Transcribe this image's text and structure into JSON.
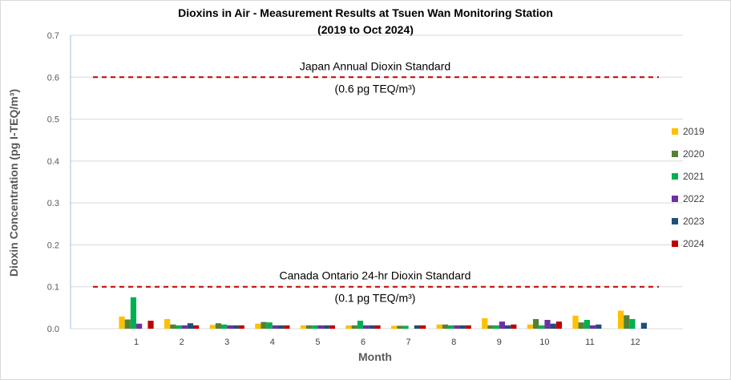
{
  "chart_data": {
    "type": "bar",
    "title": "Dioxins in Air - Measurement Results at Tsuen Wan Monitoring Station",
    "subtitle": "(2019 to Oct 2024)",
    "xlabel": "Month",
    "ylabel": "Dioxin Concentration (pg I-TEQ/m³)",
    "ylim": [
      0,
      0.7
    ],
    "yticks": [
      "0.0",
      "0.1",
      "0.2",
      "0.3",
      "0.4",
      "0.5",
      "0.6",
      "0.7"
    ],
    "grid": true,
    "legend_position": "right",
    "categories": [
      "1",
      "2",
      "3",
      "4",
      "5",
      "6",
      "7",
      "8",
      "9",
      "10",
      "11",
      "12"
    ],
    "series": [
      {
        "name": "2019",
        "color": "#FFC000",
        "values": [
          0.029,
          0.023,
          0.009,
          0.012,
          0.008,
          0.008,
          0.007,
          0.01,
          0.025,
          0.01,
          0.031,
          0.043
        ]
      },
      {
        "name": "2020",
        "color": "#548235",
        "values": [
          0.022,
          0.01,
          0.013,
          0.016,
          0.008,
          0.008,
          0.007,
          0.01,
          0.008,
          0.023,
          0.015,
          0.032
        ]
      },
      {
        "name": "2021",
        "color": "#00B050",
        "values": [
          0.075,
          0.008,
          0.01,
          0.015,
          0.008,
          0.019,
          0.007,
          0.008,
          0.008,
          0.008,
          0.021,
          0.023
        ]
      },
      {
        "name": "2022",
        "color": "#7030A0",
        "values": [
          0.012,
          0.008,
          0.008,
          0.008,
          0.008,
          0.008,
          null,
          0.008,
          0.017,
          0.021,
          0.008,
          null
        ]
      },
      {
        "name": "2023",
        "color": "#1F4E79",
        "values": [
          null,
          0.013,
          0.008,
          0.008,
          0.008,
          0.008,
          0.008,
          0.008,
          0.008,
          0.012,
          0.01,
          0.014
        ]
      },
      {
        "name": "2024",
        "color": "#C00000",
        "values": [
          0.019,
          0.008,
          0.008,
          0.008,
          0.008,
          0.008,
          0.008,
          0.008,
          0.01,
          0.017,
          null,
          null
        ]
      }
    ],
    "reference_lines": [
      {
        "value": 0.6,
        "color": "#C00000",
        "label": "Japan Annual Dioxin Standard",
        "sublabel": "(0.6 pg TEQ/m³)"
      },
      {
        "value": 0.1,
        "color": "#C00000",
        "label": "Canada Ontario 24-hr Dioxin Standard",
        "sublabel": "(0.1 pg TEQ/m³)"
      }
    ]
  }
}
